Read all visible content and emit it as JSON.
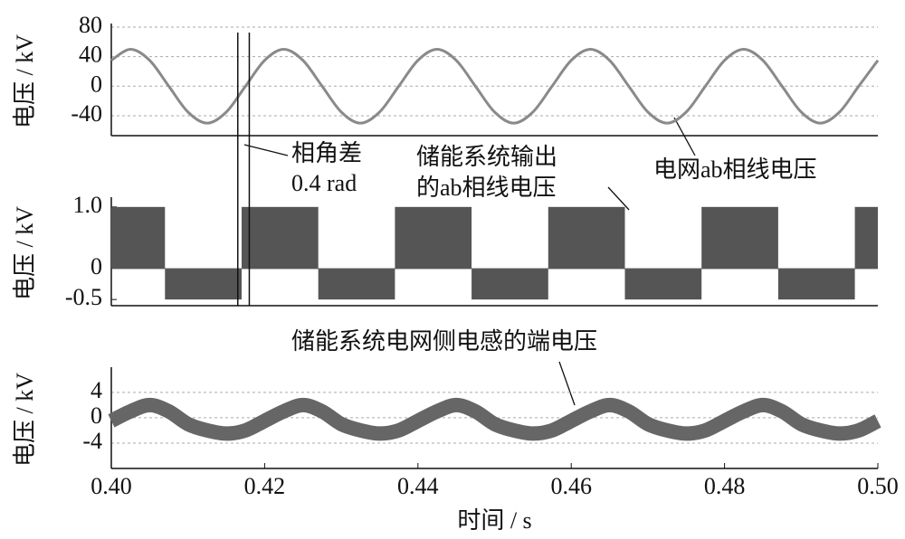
{
  "chart_data": [
    {
      "type": "line",
      "ylabel": "电压 / kV",
      "xlim": [
        0.4,
        0.5
      ],
      "ylim": [
        -67,
        80
      ],
      "yticks": [
        80,
        40,
        0,
        -40
      ],
      "grid": true,
      "x": [
        0.4,
        0.4025,
        0.405,
        0.4075,
        0.41,
        0.4125,
        0.415,
        0.4175,
        0.42,
        0.4225,
        0.425,
        0.4275,
        0.43,
        0.4325,
        0.435,
        0.4375,
        0.44,
        0.4425,
        0.445,
        0.4475,
        0.45,
        0.4525,
        0.455,
        0.4575,
        0.46,
        0.4625,
        0.465,
        0.4675,
        0.47,
        0.4725,
        0.475,
        0.4775,
        0.48,
        0.4825,
        0.485,
        0.4875,
        0.49,
        0.4925,
        0.495,
        0.4975,
        0.5
      ],
      "series": [
        {
          "name": "电网ab相线电压",
          "color": "#8a8a8a",
          "values": [
            35,
            50,
            35,
            0,
            -35,
            -50,
            -35,
            0,
            35,
            50,
            35,
            0,
            -35,
            -50,
            -35,
            0,
            35,
            50,
            35,
            0,
            -35,
            -50,
            -35,
            0,
            35,
            50,
            35,
            0,
            -35,
            -50,
            -35,
            0,
            35,
            50,
            35,
            0,
            -35,
            -50,
            -35,
            0,
            35
          ]
        }
      ],
      "markers": [
        0.4165,
        0.418
      ],
      "annotations": [
        "相角差",
        "0.4 rad",
        "电网ab相线电压"
      ]
    },
    {
      "type": "step",
      "ylabel": "电压 / kV",
      "xlim": [
        0.4,
        0.5
      ],
      "ylim": [
        -0.6,
        1.1
      ],
      "yticks": [
        {
          "value": 1,
          "label": "1.0"
        },
        0,
        -0.5
      ],
      "grid": false,
      "x": [
        0.4,
        0.407,
        0.417,
        0.427,
        0.437,
        0.447,
        0.457,
        0.467,
        0.477,
        0.487,
        0.497
      ],
      "series": [
        {
          "name": "储能系统输出的ab相线电压",
          "color": "#555555",
          "values": [
            1,
            -0.5,
            1,
            -0.5,
            1,
            -0.5,
            1,
            -0.5,
            1,
            -0.5,
            1
          ]
        }
      ],
      "annotations": [
        "储能系统输出",
        "的ab相线电压"
      ]
    },
    {
      "type": "line",
      "ylabel": "电压 / kV",
      "xlabel": "时间 / s",
      "xlim": [
        0.4,
        0.5
      ],
      "ylim": [
        -8,
        7.4
      ],
      "yticks": [
        4,
        0,
        -4
      ],
      "grid": true,
      "xticks": [
        {
          "value": 0.4,
          "label": "0.40"
        },
        0.42,
        0.44,
        0.46,
        0.48,
        {
          "value": 0.5,
          "label": "0.50"
        }
      ],
      "x": [
        0.4,
        0.4025,
        0.405,
        0.4075,
        0.41,
        0.4125,
        0.415,
        0.4175,
        0.42,
        0.4225,
        0.425,
        0.4275,
        0.43,
        0.4325,
        0.435,
        0.4375,
        0.44,
        0.4425,
        0.445,
        0.4475,
        0.45,
        0.4525,
        0.455,
        0.4575,
        0.46,
        0.4625,
        0.465,
        0.4675,
        0.47,
        0.4725,
        0.475,
        0.4775,
        0.48,
        0.4825,
        0.485,
        0.4875,
        0.49,
        0.4925,
        0.495,
        0.4975,
        0.5
      ],
      "series": [
        {
          "name": "储能系统电网侧电感的端电压",
          "color": "#666666",
          "values": [
            -0.5,
            1,
            2,
            1,
            -1,
            -2,
            -2.5,
            -2,
            -0.5,
            1,
            2,
            1,
            -1,
            -2,
            -2.5,
            -2,
            -0.5,
            1,
            2,
            1,
            -1,
            -2,
            -2.5,
            -2,
            -0.5,
            1,
            2,
            1,
            -1,
            -2,
            -2.5,
            -2,
            -0.5,
            1,
            2,
            1,
            -1,
            -2,
            -2.5,
            -2,
            -0.5
          ]
        }
      ],
      "annotations": [
        "储能系统电网侧电感的端电压"
      ]
    }
  ]
}
